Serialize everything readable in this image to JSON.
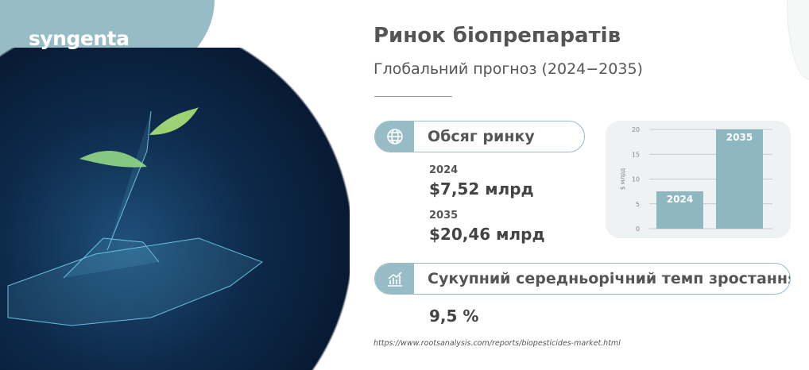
{
  "brand": {
    "logo_text": "syngenta"
  },
  "header": {
    "title": "Ринок біопрепаратів",
    "subtitle": "Глобальний прогноз (2024−2035)"
  },
  "market_volume": {
    "label": "Обсяг ринку",
    "icon": "globe-icon",
    "items": [
      {
        "year": "2024",
        "value": "$7,52 млрд"
      },
      {
        "year": "2035",
        "value": "$20,46 млрд"
      }
    ]
  },
  "cagr": {
    "label": "Сукупний середньорічний темп зростання",
    "icon": "growth-chart-icon",
    "value": "9,5 %"
  },
  "source": "https://www.rootsanalysis.com/reports/biopesticides-market.html",
  "colors": {
    "accent": "#97bcc6",
    "dark": "#0d2a4b",
    "card": "#eef2f2"
  },
  "chart_data": {
    "type": "bar",
    "categories": [
      "2024",
      "2035"
    ],
    "values": [
      7.52,
      20.46
    ],
    "ylabel": "$ млрд",
    "ylim": [
      0,
      20
    ],
    "yticks": [
      0,
      5,
      10,
      15,
      20
    ],
    "grid": true,
    "bar_labels": [
      "2024",
      "2035"
    ]
  }
}
